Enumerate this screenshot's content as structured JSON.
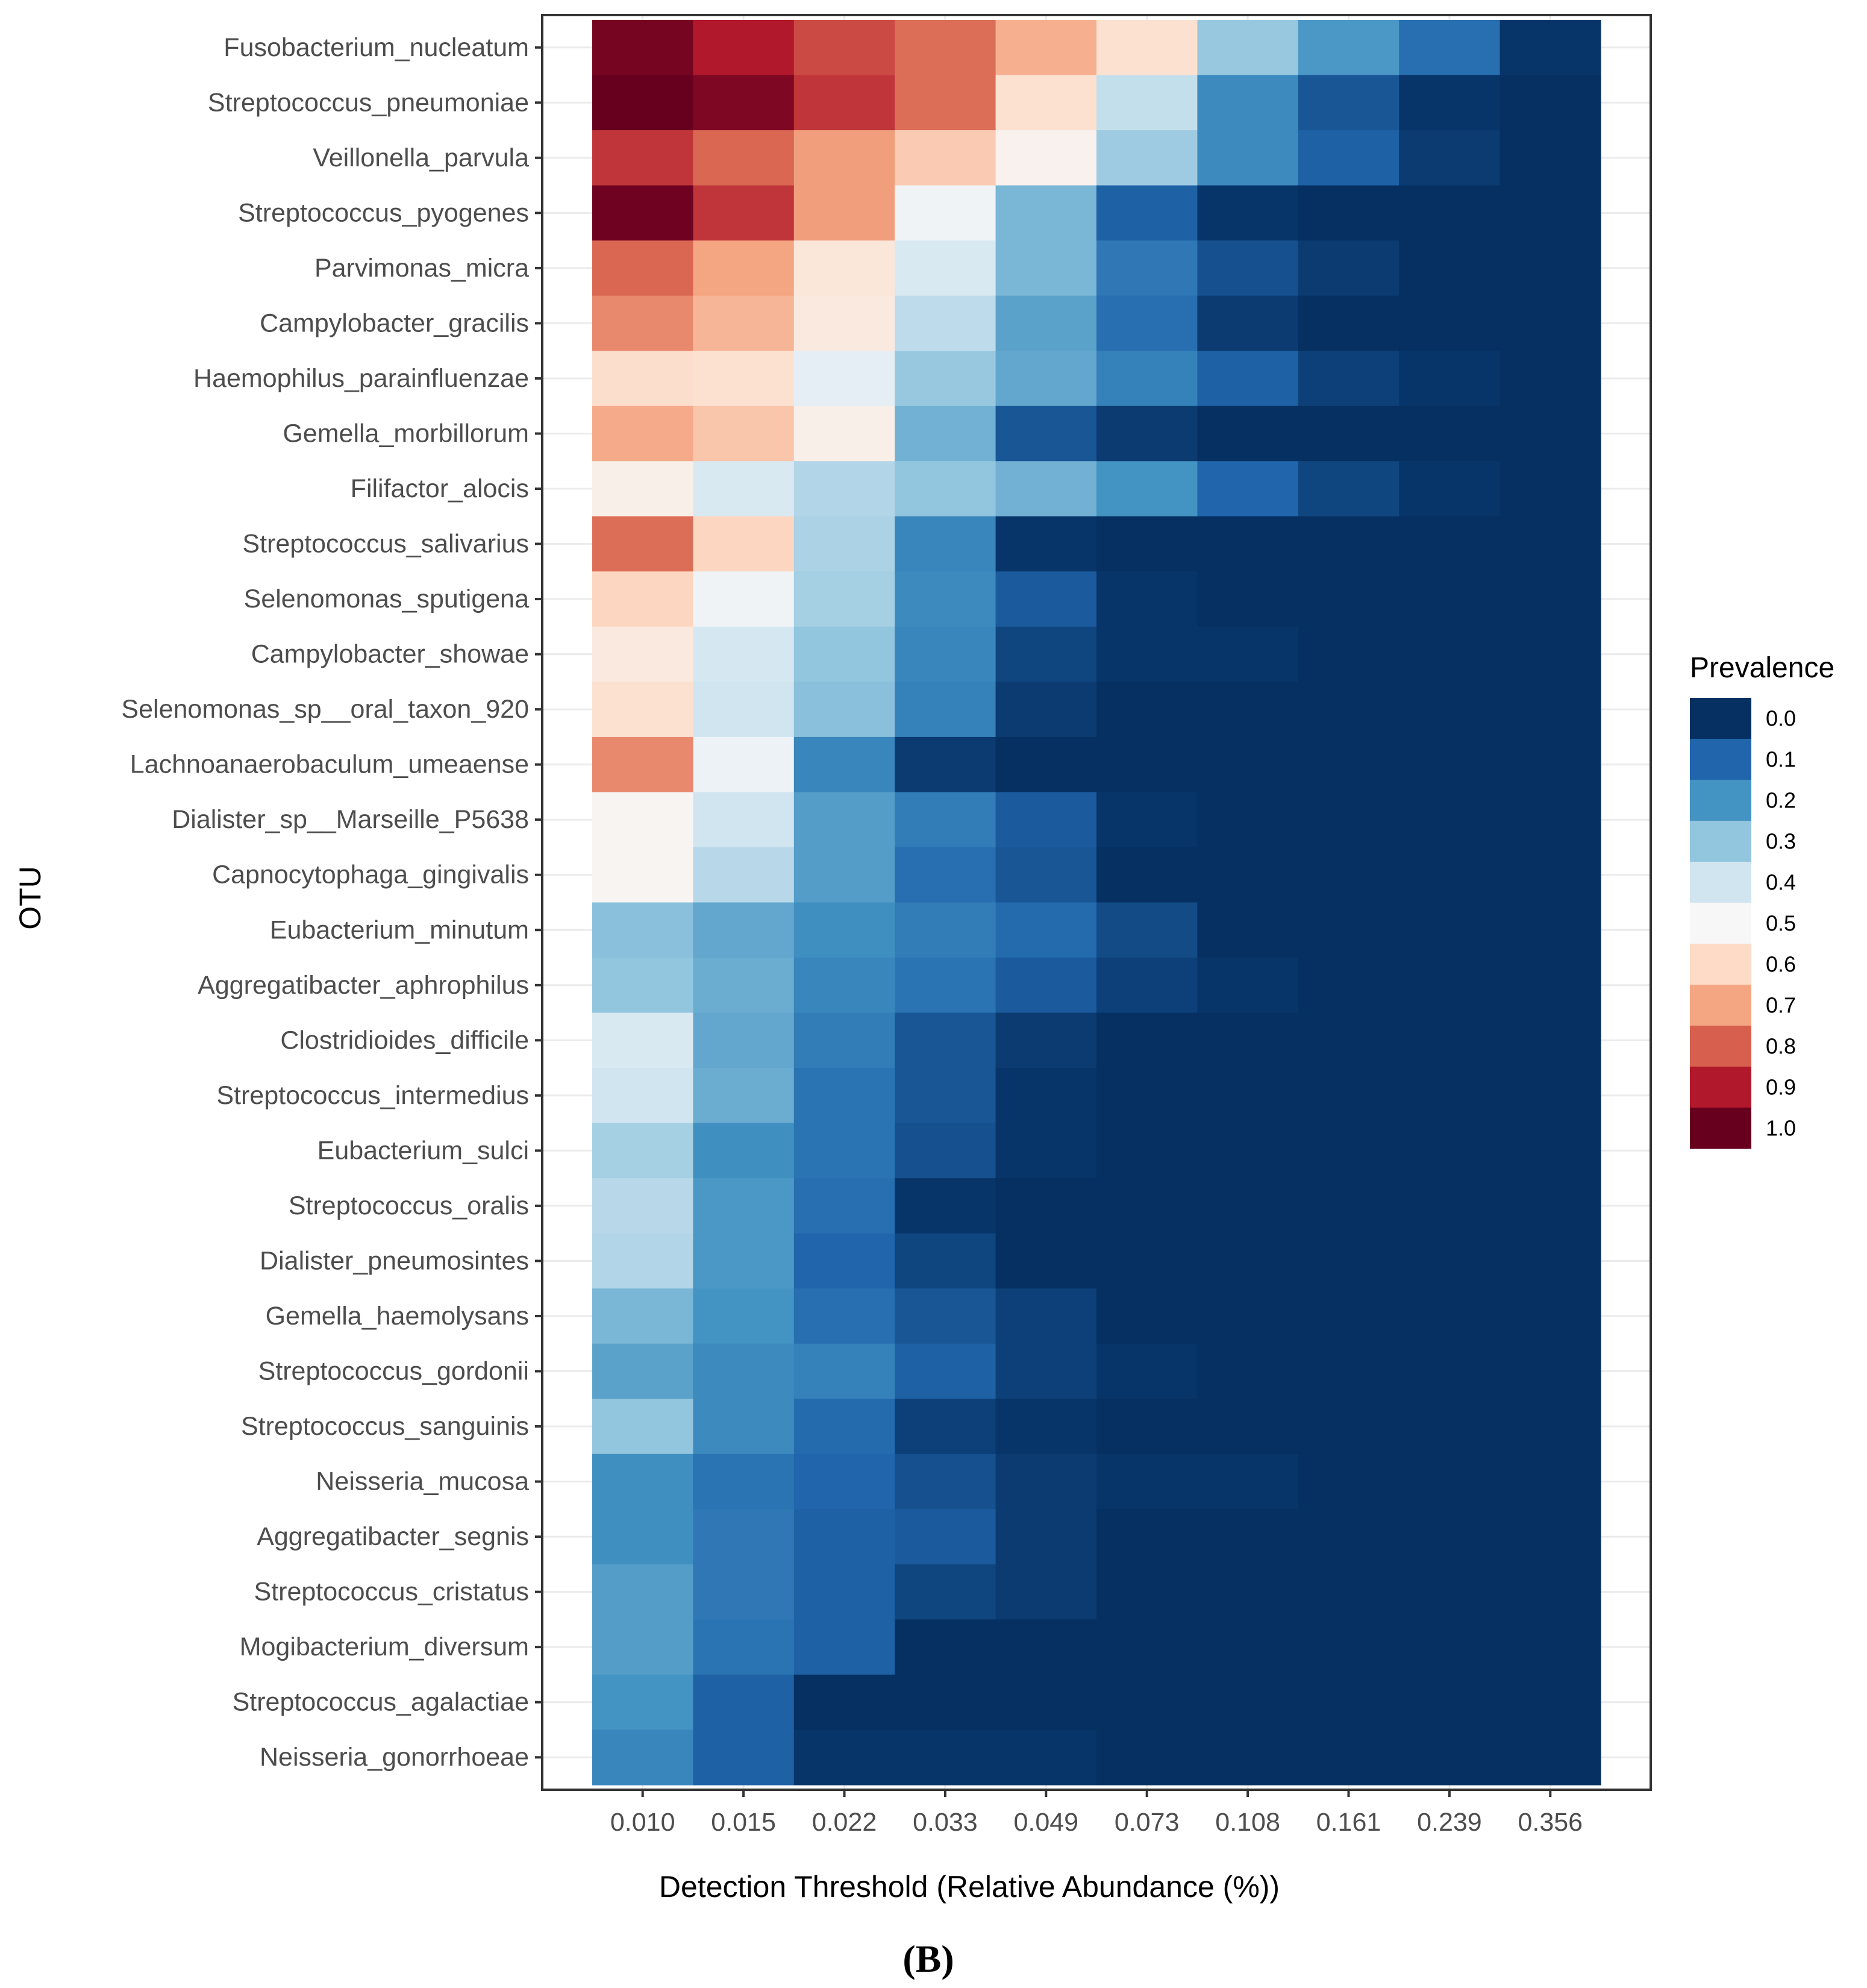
{
  "chart_data": {
    "type": "heatmap",
    "title": "",
    "xlabel": "Detection Threshold (Relative Abundance (%))",
    "ylabel": "OTU",
    "panel_label": "(B)",
    "x_categories": [
      "0.010",
      "0.015",
      "0.022",
      "0.033",
      "0.049",
      "0.073",
      "0.108",
      "0.161",
      "0.239",
      "0.356"
    ],
    "y_categories": [
      "Fusobacterium_nucleatum",
      "Streptococcus_pneumoniae",
      "Veillonella_parvula",
      "Streptococcus_pyogenes",
      "Parvimonas_micra",
      "Campylobacter_gracilis",
      "Haemophilus_parainfluenzae",
      "Gemella_morbillorum",
      "Filifactor_alocis",
      "Streptococcus_salivarius",
      "Selenomonas_sputigena",
      "Campylobacter_showae",
      "Selenomonas_sp__oral_taxon_920",
      "Lachnoanaerobaculum_umeaense",
      "Dialister_sp__Marseille_P5638",
      "Capnocytophaga_gingivalis",
      "Eubacterium_minutum",
      "Aggregatibacter_aphrophilus",
      "Clostridioides_difficile",
      "Streptococcus_intermedius",
      "Eubacterium_sulci",
      "Streptococcus_oralis",
      "Dialister_pneumosintes",
      "Gemella_haemolysans",
      "Streptococcus_gordonii",
      "Streptococcus_sanguinis",
      "Neisseria_mucosa",
      "Aggregatibacter_segnis",
      "Streptococcus_cristatus",
      "Mogibacterium_diversum",
      "Streptococcus_agalactiae",
      "Neisseria_gonorrhoeae"
    ],
    "values": [
      [
        0.98,
        0.9,
        0.83,
        0.78,
        0.68,
        0.58,
        0.31,
        0.21,
        0.12,
        0.01
      ],
      [
        1.0,
        0.97,
        0.86,
        0.78,
        0.58,
        0.38,
        0.18,
        0.07,
        0.01,
        0.0
      ],
      [
        0.86,
        0.79,
        0.71,
        0.63,
        0.52,
        0.32,
        0.18,
        0.09,
        0.02,
        0.0
      ],
      [
        0.99,
        0.86,
        0.71,
        0.48,
        0.27,
        0.09,
        0.01,
        0.0,
        0.0,
        0.0
      ],
      [
        0.79,
        0.7,
        0.56,
        0.42,
        0.27,
        0.14,
        0.06,
        0.02,
        0.0,
        0.0
      ],
      [
        0.74,
        0.67,
        0.55,
        0.37,
        0.23,
        0.12,
        0.02,
        0.0,
        0.0,
        0.0
      ],
      [
        0.59,
        0.58,
        0.45,
        0.31,
        0.24,
        0.16,
        0.09,
        0.03,
        0.01,
        0.0
      ],
      [
        0.69,
        0.64,
        0.53,
        0.26,
        0.07,
        0.02,
        0.0,
        0.0,
        0.0,
        0.0
      ],
      [
        0.53,
        0.42,
        0.35,
        0.3,
        0.26,
        0.2,
        0.1,
        0.04,
        0.01,
        0.0
      ],
      [
        0.78,
        0.61,
        0.34,
        0.17,
        0.01,
        0.0,
        0.0,
        0.0,
        0.0,
        0.0
      ],
      [
        0.61,
        0.48,
        0.33,
        0.18,
        0.08,
        0.01,
        0.0,
        0.0,
        0.0,
        0.0
      ],
      [
        0.55,
        0.41,
        0.3,
        0.17,
        0.04,
        0.01,
        0.01,
        0.0,
        0.0,
        0.0
      ],
      [
        0.58,
        0.4,
        0.29,
        0.16,
        0.02,
        0.0,
        0.0,
        0.0,
        0.0,
        0.0
      ],
      [
        0.74,
        0.47,
        0.17,
        0.02,
        0.0,
        0.0,
        0.0,
        0.0,
        0.0,
        0.0
      ],
      [
        0.51,
        0.4,
        0.22,
        0.15,
        0.08,
        0.01,
        0.0,
        0.0,
        0.0,
        0.0
      ],
      [
        0.51,
        0.36,
        0.22,
        0.12,
        0.07,
        0.0,
        0.0,
        0.0,
        0.0,
        0.0
      ],
      [
        0.29,
        0.24,
        0.19,
        0.15,
        0.11,
        0.05,
        0.0,
        0.0,
        0.0,
        0.0
      ],
      [
        0.3,
        0.25,
        0.17,
        0.13,
        0.08,
        0.03,
        0.01,
        0.0,
        0.0,
        0.0
      ],
      [
        0.42,
        0.24,
        0.15,
        0.07,
        0.02,
        0.0,
        0.0,
        0.0,
        0.0,
        0.0
      ],
      [
        0.4,
        0.25,
        0.13,
        0.07,
        0.01,
        0.0,
        0.0,
        0.0,
        0.0,
        0.0
      ],
      [
        0.33,
        0.19,
        0.13,
        0.06,
        0.01,
        0.0,
        0.0,
        0.0,
        0.0,
        0.0
      ],
      [
        0.36,
        0.21,
        0.12,
        0.01,
        0.0,
        0.0,
        0.0,
        0.0,
        0.0,
        0.0
      ],
      [
        0.35,
        0.21,
        0.1,
        0.04,
        0.0,
        0.0,
        0.0,
        0.0,
        0.0,
        0.0
      ],
      [
        0.27,
        0.2,
        0.12,
        0.07,
        0.03,
        0.0,
        0.0,
        0.0,
        0.0,
        0.0
      ],
      [
        0.23,
        0.18,
        0.16,
        0.09,
        0.03,
        0.01,
        0.0,
        0.0,
        0.0,
        0.0
      ],
      [
        0.3,
        0.18,
        0.11,
        0.03,
        0.01,
        0.0,
        0.0,
        0.0,
        0.0,
        0.0
      ],
      [
        0.19,
        0.13,
        0.1,
        0.06,
        0.02,
        0.01,
        0.01,
        0.0,
        0.0,
        0.0
      ],
      [
        0.19,
        0.14,
        0.09,
        0.08,
        0.02,
        0.0,
        0.0,
        0.0,
        0.0,
        0.0
      ],
      [
        0.22,
        0.14,
        0.09,
        0.04,
        0.02,
        0.0,
        0.0,
        0.0,
        0.0,
        0.0
      ],
      [
        0.22,
        0.13,
        0.09,
        0.0,
        0.0,
        0.0,
        0.0,
        0.0,
        0.0,
        0.0
      ],
      [
        0.2,
        0.09,
        0.0,
        0.0,
        0.0,
        0.0,
        0.0,
        0.0,
        0.0,
        0.0
      ],
      [
        0.17,
        0.09,
        0.01,
        0.01,
        0.01,
        0.0,
        0.0,
        0.0,
        0.0,
        0.0
      ]
    ],
    "color_range": [
      0,
      1
    ],
    "colormap": [
      "#053061",
      "#2166ac",
      "#4393c3",
      "#92c5de",
      "#d1e5f0",
      "#f7f7f7",
      "#fddbc7",
      "#f4a582",
      "#d6604d",
      "#b2182b",
      "#67001f"
    ],
    "legend": {
      "title": "Prevalence",
      "placement": "right",
      "entries": [
        "0.0",
        "0.1",
        "0.2",
        "0.3",
        "0.4",
        "0.5",
        "0.6",
        "0.7",
        "0.8",
        "0.9",
        "1.0"
      ]
    },
    "grid": true
  }
}
